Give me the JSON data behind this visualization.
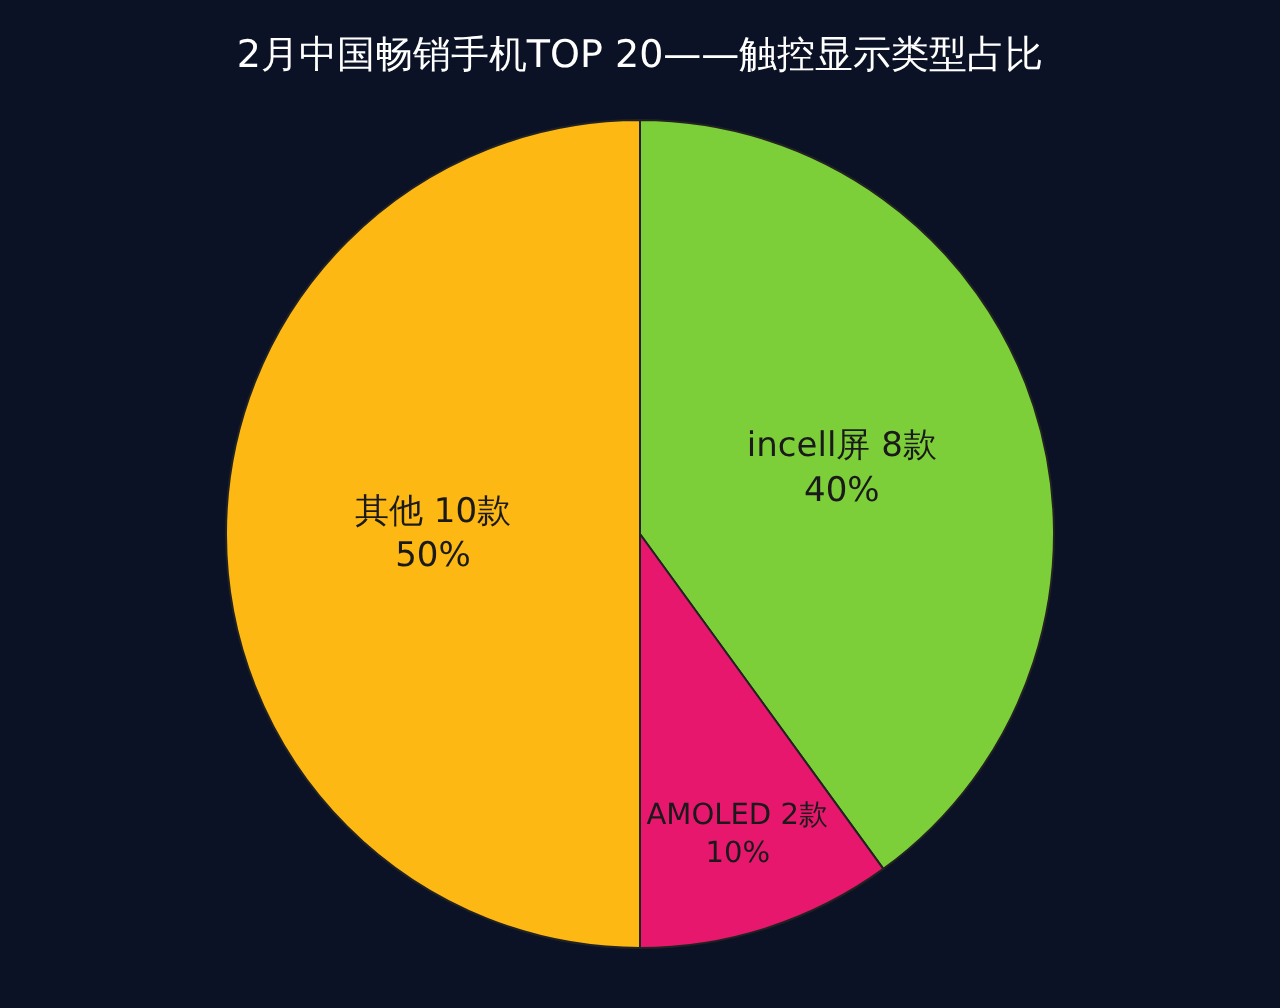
{
  "chart_data": {
    "type": "pie",
    "title": "2月中国畅销手机TOP 20——触控显示类型占比",
    "categories": [
      "incell屏 8款",
      "AMOLED 2款",
      "其他 10款"
    ],
    "values": [
      40,
      10,
      50
    ],
    "value_labels": [
      "40%",
      "10%",
      "50%"
    ],
    "colors": [
      "#7dcf3a",
      "#e8176e",
      "#fdb813"
    ],
    "legend": false
  }
}
